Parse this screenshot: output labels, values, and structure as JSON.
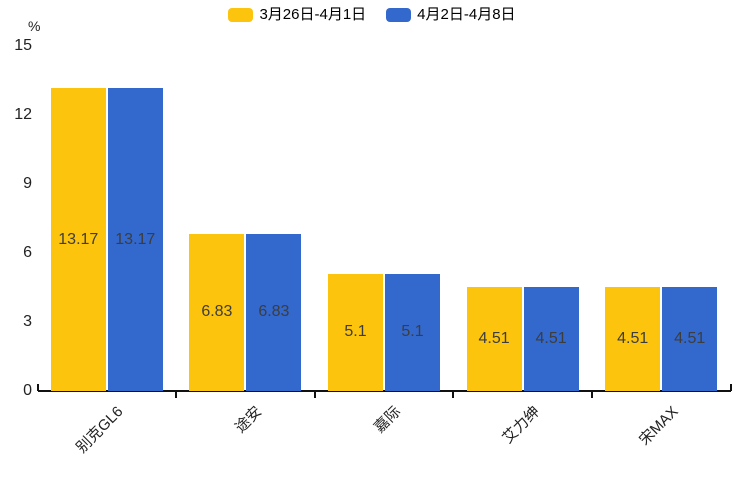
{
  "chart_data": {
    "type": "bar",
    "unit": "%",
    "categories": [
      "别克GL6",
      "途安",
      "嘉际",
      "艾力绅",
      "宋MAX"
    ],
    "series": [
      {
        "name": "3月26日-4月1日",
        "color": "#FCC40D",
        "values": [
          13.17,
          6.83,
          5.1,
          4.51,
          4.51
        ]
      },
      {
        "name": "4月2日-4月8日",
        "color": "#3368CD",
        "values": [
          13.17,
          6.83,
          5.1,
          4.51,
          4.51
        ]
      }
    ],
    "ylim": [
      0,
      15
    ],
    "yticks": [
      0,
      3,
      6,
      9,
      12,
      15
    ],
    "grid": false,
    "legend_position": "top",
    "value_labels_inside_bars": true
  },
  "colors": {
    "series1": "#FCC40D",
    "series2": "#3368CD",
    "axis_line": "#111111",
    "tick_label": "#222222",
    "bar_value_label": "#3d3d3d",
    "background": "#ffffff"
  }
}
